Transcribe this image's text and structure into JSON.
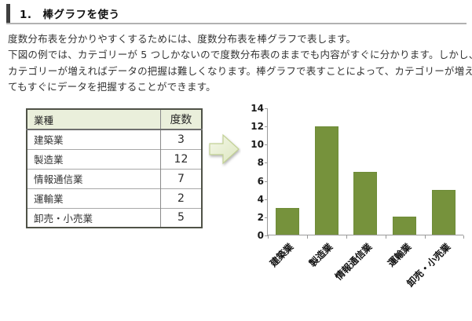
{
  "header": {
    "title": "1.　棒グラフを使う"
  },
  "paragraph": {
    "lines": [
      "度数分布表を分かりやすくするためには、度数分布表を棒グラフで表します。",
      "下図の例では、カテゴリーが 5 つしかないので度数分布表のままでも内容がすぐに分かります。しかし、",
      "カテゴリーが増えればデータの把握は難しくなります。棒グラフで表すことによって、カテゴリーが増え",
      "てもすぐにデータを把握することができます。"
    ]
  },
  "table": {
    "headers": [
      "業種",
      "度数"
    ],
    "rows": [
      {
        "label": "建築業",
        "value": "3"
      },
      {
        "label": "製造業",
        "value": "12"
      },
      {
        "label": "情報通信業",
        "value": "7"
      },
      {
        "label": "運輸業",
        "value": "2"
      },
      {
        "label": "卸売・小売業",
        "value": "5"
      }
    ]
  },
  "arrow": {
    "icon": "right-block-arrow",
    "fill": "#edf2da",
    "stroke": "#c3d296"
  },
  "chart_data": {
    "type": "bar",
    "title": "",
    "categories": [
      "建築業",
      "製造業",
      "情報通信業",
      "運輸業",
      "卸売・小売業"
    ],
    "values": [
      3,
      12,
      7,
      2,
      5
    ],
    "xlabel": "",
    "ylabel": "",
    "ylim": [
      0,
      14
    ],
    "yticks": [
      0,
      2,
      4,
      6,
      8,
      10,
      12,
      14
    ],
    "grid": "off",
    "legend": "none",
    "bar_color": "#76923C",
    "axis_color": "#9a9a9a",
    "label_rotation_deg": 45
  }
}
